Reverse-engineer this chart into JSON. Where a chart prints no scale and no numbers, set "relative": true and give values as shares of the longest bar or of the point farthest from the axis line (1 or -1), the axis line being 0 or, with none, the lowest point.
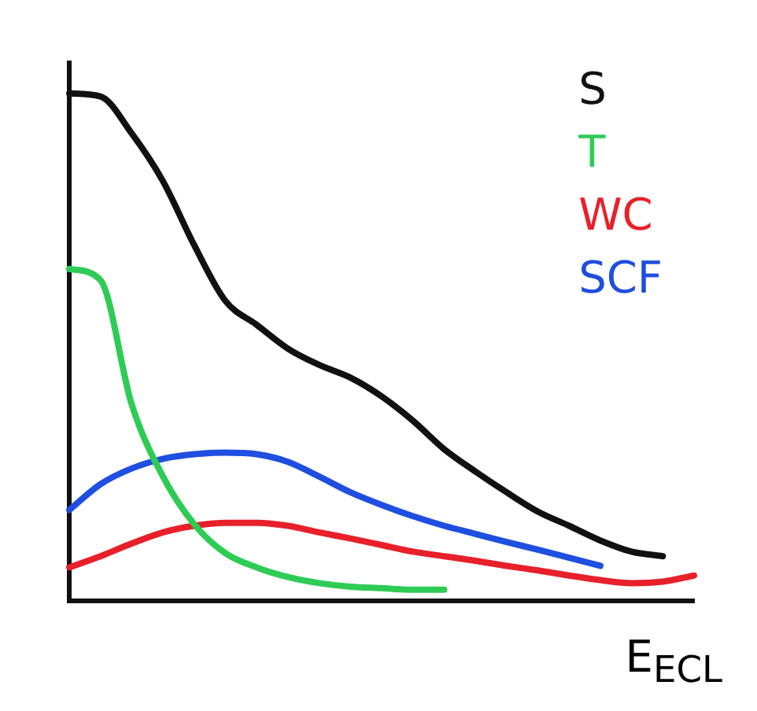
{
  "chart_data": {
    "type": "line",
    "relative": true,
    "xlabel": "E$_{ECL}$",
    "legend": "top right",
    "tick_labels": false,
    "categories": [
      null,
      null,
      null,
      null,
      null,
      null,
      null,
      null,
      null,
      null,
      null,
      null,
      null,
      null,
      null,
      null,
      null,
      null,
      null,
      null,
      null
    ],
    "series": [
      {
        "name": "S",
        "color": "#111111",
        "values": [
          1.0,
          0.994,
          0.921,
          0.827,
          0.701,
          0.591,
          0.544,
          0.497,
          0.465,
          0.44,
          0.403,
          0.355,
          0.299,
          0.255,
          0.214,
          0.176,
          0.148,
          0.119,
          0.097,
          0.088,
          null
        ]
      },
      {
        "name": "T",
        "color": "#2ecc55",
        "values": [
          0.654,
          0.632,
          0.387,
          0.245,
          0.151,
          0.094,
          0.066,
          0.047,
          0.035,
          0.028,
          0.025,
          0.022,
          0.022,
          null,
          null,
          null,
          null,
          null,
          null,
          null,
          null
        ]
      },
      {
        "name": "WC",
        "color": "#e8202a",
        "values": [
          0.066,
          0.088,
          0.113,
          0.135,
          0.148,
          0.154,
          0.154,
          0.148,
          0.135,
          0.123,
          0.11,
          0.097,
          0.088,
          0.079,
          0.069,
          0.06,
          0.05,
          0.041,
          0.035,
          0.038,
          0.05
        ]
      },
      {
        "name": "SCF",
        "color": "#1f4fe0",
        "values": [
          0.179,
          0.23,
          0.261,
          0.28,
          0.289,
          0.292,
          0.289,
          0.274,
          0.245,
          0.214,
          0.189,
          0.167,
          0.148,
          0.132,
          0.116,
          0.101,
          0.085,
          0.069,
          null,
          null,
          null
        ]
      }
    ]
  }
}
